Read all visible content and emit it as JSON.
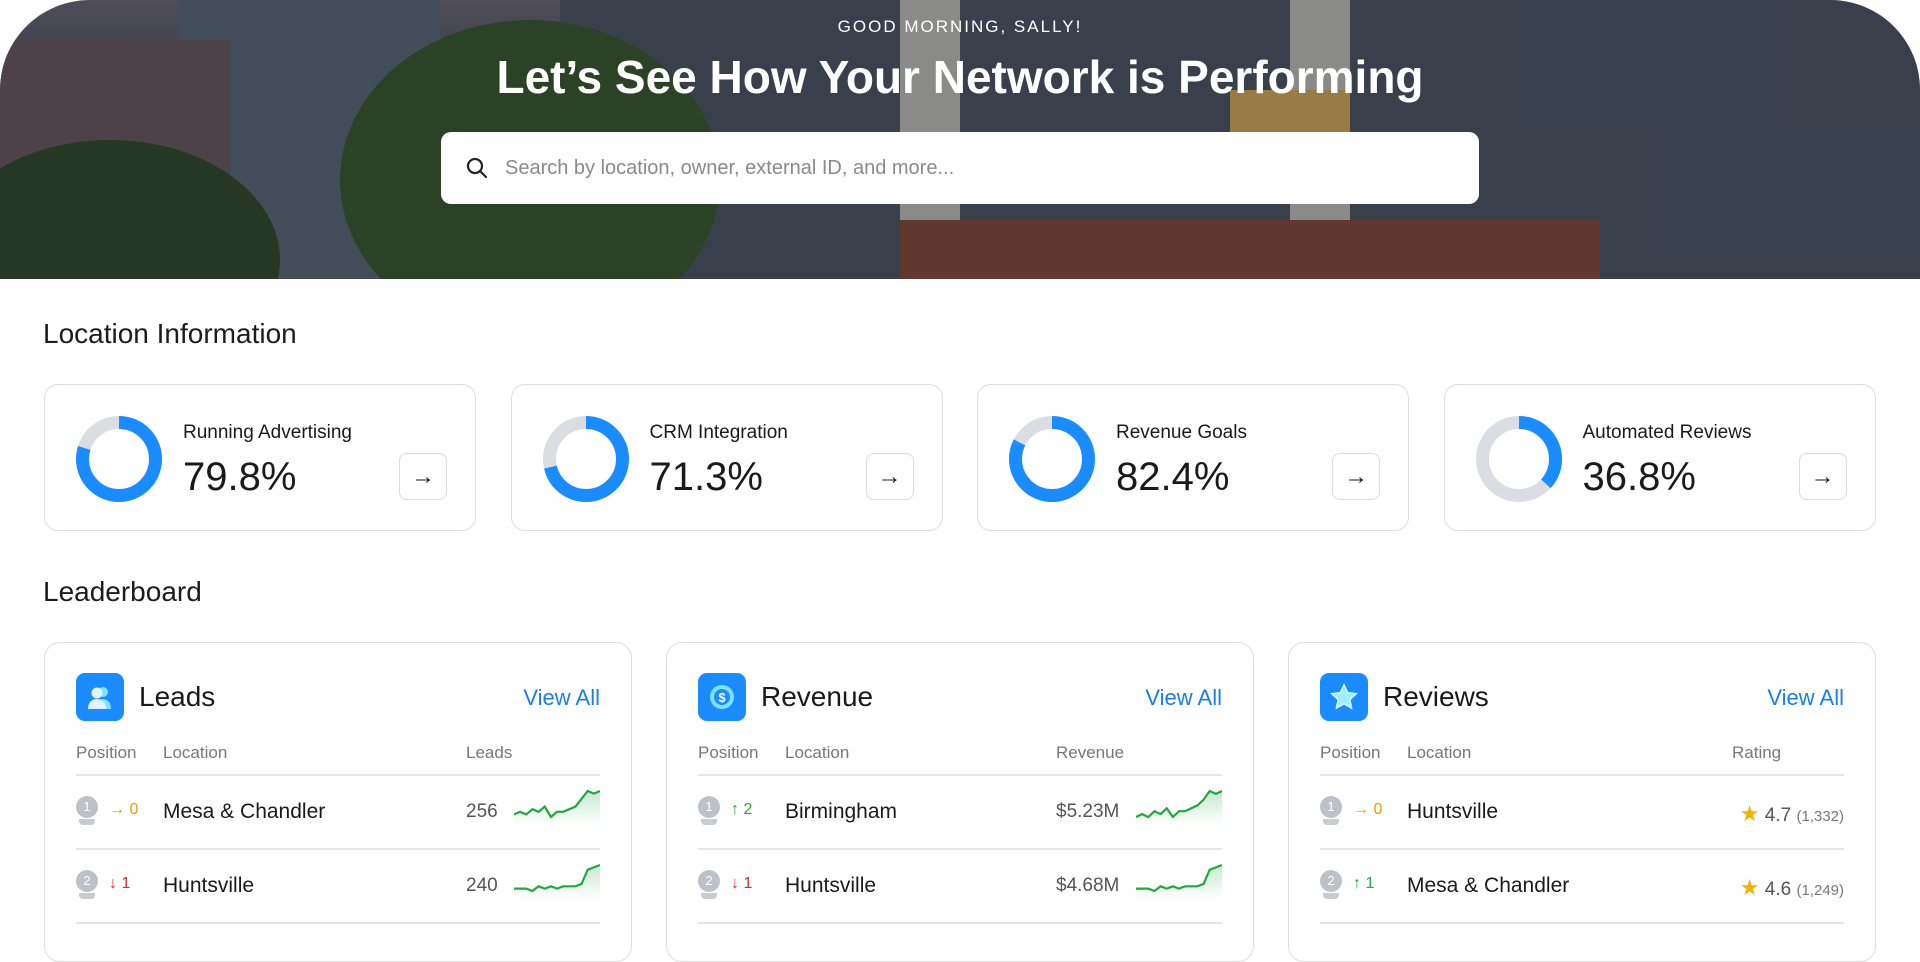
{
  "hero": {
    "greeting": "GOOD MORNING, SALLY!",
    "title": "Let’s See How Your Network is Performing",
    "search_placeholder": "Search by location, owner, external ID, and more..."
  },
  "location_info": {
    "heading": "Location Information",
    "cards": [
      {
        "label": "Running Advertising",
        "value": "79.8%",
        "percent": 79.8
      },
      {
        "label": "CRM Integration",
        "value": "71.3%",
        "percent": 71.3
      },
      {
        "label": "Revenue Goals",
        "value": "82.4%",
        "percent": 82.4
      },
      {
        "label": "Automated Reviews",
        "value": "36.8%",
        "percent": 36.8
      }
    ]
  },
  "colors": {
    "accent": "#1a8cff",
    "track": "#dcdde2",
    "up": "#1fa83f",
    "down": "#d32f2f",
    "flat": "#e0a100",
    "star": "#f0b400",
    "link": "#1a7ee8"
  },
  "leaderboard": {
    "heading": "Leaderboard",
    "view_all": "View All",
    "col_position": "Position",
    "col_location": "Location",
    "leads": {
      "title": "Leads",
      "icon": "users-icon",
      "col_metric": "Leads",
      "rows": [
        {
          "pos": "1",
          "change": "→ 0",
          "dir": "flat",
          "location": "Mesa & Chandler",
          "value": "256",
          "spark": [
            3,
            4,
            3,
            5,
            4,
            6,
            2,
            4,
            4,
            5,
            6,
            9,
            12,
            11,
            12
          ]
        },
        {
          "pos": "2",
          "change": "↓ 1",
          "dir": "down",
          "location": "Huntsville",
          "value": "240",
          "spark": [
            2,
            2,
            2,
            1,
            3,
            2,
            3,
            2,
            3,
            3,
            3,
            4,
            10,
            11,
            12
          ]
        }
      ]
    },
    "revenue": {
      "title": "Revenue",
      "icon": "dollar-icon",
      "col_metric": "Revenue",
      "rows": [
        {
          "pos": "1",
          "change": "↑ 2",
          "dir": "up",
          "location": "Birmingham",
          "value": "$5.23M",
          "spark": [
            3,
            4,
            3,
            5,
            4,
            6,
            3,
            5,
            5,
            6,
            7,
            9,
            12,
            11,
            12
          ]
        },
        {
          "pos": "2",
          "change": "↓ 1",
          "dir": "down",
          "location": "Huntsville",
          "value": "$4.68M",
          "spark": [
            2,
            2,
            2,
            1,
            3,
            2,
            3,
            2,
            3,
            3,
            3,
            4,
            10,
            11,
            12
          ]
        }
      ]
    },
    "reviews": {
      "title": "Reviews",
      "icon": "star-icon",
      "col_metric": "Rating",
      "rows": [
        {
          "pos": "1",
          "change": "→ 0",
          "dir": "flat",
          "location": "Huntsville",
          "rating": "4.7",
          "count": "(1,332)"
        },
        {
          "pos": "2",
          "change": "↑ 1",
          "dir": "up",
          "location": "Mesa & Chandler",
          "rating": "4.6",
          "count": "(1,249)"
        }
      ]
    }
  }
}
